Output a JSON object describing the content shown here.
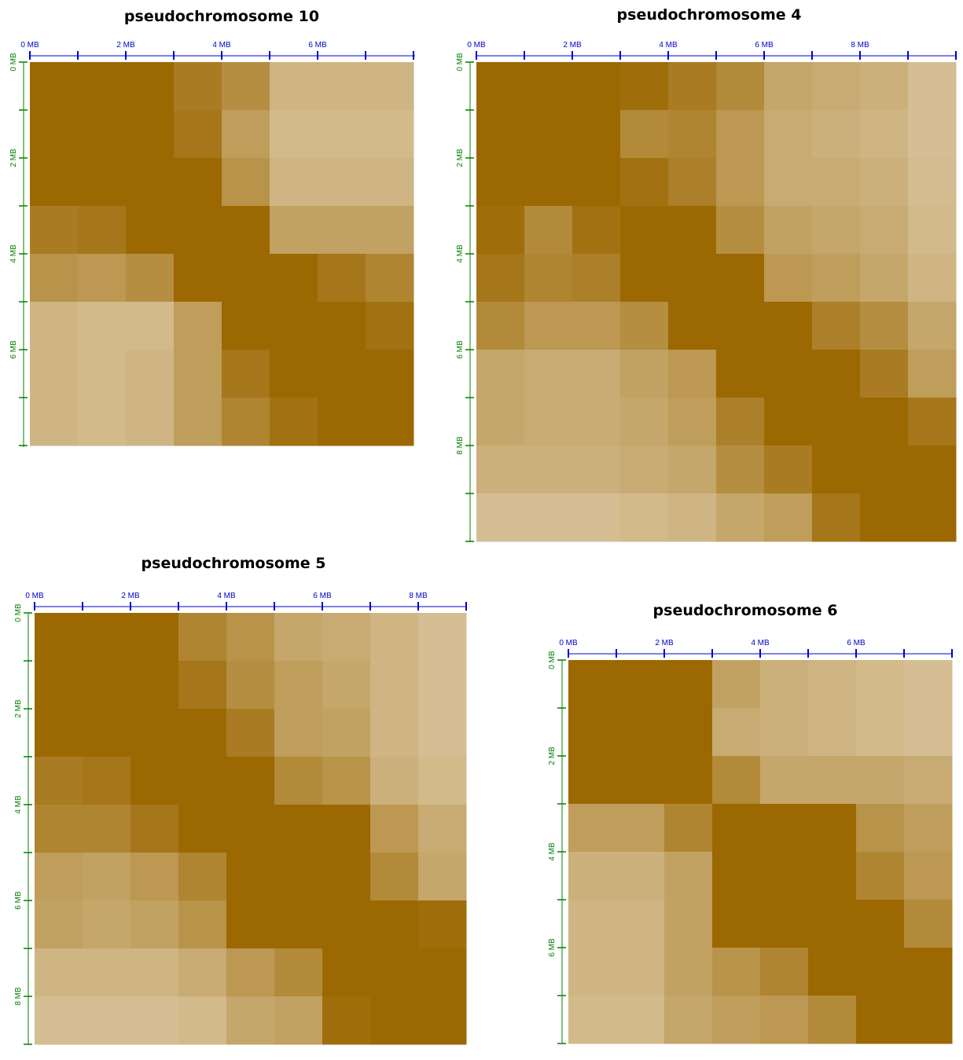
{
  "colors": {
    "strong": "#9C6802",
    "weak": "#DBC8A3",
    "x_axis": "#0000CC",
    "y_axis": "#008000"
  },
  "chart_data": [
    {
      "type": "heatmap",
      "title": "pseudochromosome 10",
      "bin_size_mb": 1,
      "x_tick_labels": [
        "0 MB",
        "2 MB",
        "4 MB",
        "6 MB"
      ],
      "y_tick_labels": [
        "0 MB",
        "2 MB",
        "4 MB",
        "6 MB"
      ],
      "value_range": [
        0,
        1
      ],
      "matrix": [
        [
          1,
          1,
          1,
          0.8,
          0.6,
          0.2,
          0.2,
          0.2
        ],
        [
          1,
          1,
          1,
          0.85,
          0.45,
          0.15,
          0.15,
          0.15
        ],
        [
          1,
          1,
          1,
          1,
          0.55,
          0.2,
          0.2,
          0.2
        ],
        [
          0.8,
          0.85,
          1,
          1,
          1,
          0.4,
          0.4,
          0.4
        ],
        [
          0.55,
          0.5,
          0.6,
          1,
          1,
          1,
          0.85,
          0.7
        ],
        [
          0.2,
          0.15,
          0.15,
          0.45,
          1,
          1,
          1,
          0.9
        ],
        [
          0.2,
          0.15,
          0.2,
          0.45,
          0.85,
          1,
          1,
          1
        ],
        [
          0.2,
          0.15,
          0.2,
          0.45,
          0.7,
          0.9,
          1,
          1
        ]
      ]
    },
    {
      "type": "heatmap",
      "title": "pseudochromosome 4",
      "bin_size_mb": 1,
      "x_tick_labels": [
        "0 MB",
        "2 MB",
        "4 MB",
        "6 MB",
        "8 MB"
      ],
      "y_tick_labels": [
        "0 MB",
        "2 MB",
        "4 MB",
        "6 MB",
        "8 MB"
      ],
      "value_range": [
        0,
        1
      ],
      "matrix": [
        [
          1,
          1,
          1,
          0.95,
          0.8,
          0.65,
          0.35,
          0.3,
          0.25,
          0.1
        ],
        [
          1,
          1,
          1,
          0.65,
          0.7,
          0.5,
          0.3,
          0.25,
          0.2,
          0.1
        ],
        [
          1,
          1,
          1,
          0.9,
          0.75,
          0.5,
          0.3,
          0.3,
          0.25,
          0.12
        ],
        [
          0.95,
          0.65,
          0.9,
          1,
          1,
          0.6,
          0.4,
          0.35,
          0.3,
          0.15
        ],
        [
          0.85,
          0.7,
          0.75,
          1,
          1,
          1,
          0.5,
          0.45,
          0.35,
          0.2
        ],
        [
          0.65,
          0.5,
          0.5,
          0.6,
          1,
          1,
          1,
          0.75,
          0.6,
          0.35
        ],
        [
          0.35,
          0.3,
          0.3,
          0.4,
          0.5,
          1,
          1,
          1,
          0.8,
          0.45
        ],
        [
          0.35,
          0.3,
          0.3,
          0.35,
          0.45,
          0.75,
          1,
          1,
          1,
          0.85
        ],
        [
          0.25,
          0.25,
          0.25,
          0.3,
          0.35,
          0.6,
          0.8,
          1,
          1,
          1
        ],
        [
          0.1,
          0.1,
          0.1,
          0.15,
          0.2,
          0.35,
          0.45,
          0.85,
          1,
          1
        ]
      ]
    },
    {
      "type": "heatmap",
      "title": "pseudochromosome 5",
      "bin_size_mb": 1,
      "x_tick_labels": [
        "0 MB",
        "2 MB",
        "4 MB",
        "6 MB",
        "8 MB"
      ],
      "y_tick_labels": [
        "0 MB",
        "2 MB",
        "4 MB",
        "6 MB",
        "8 MB"
      ],
      "value_range": [
        0,
        1
      ],
      "matrix": [
        [
          1,
          1,
          1,
          0.7,
          0.55,
          0.35,
          0.3,
          0.2,
          0.1
        ],
        [
          1,
          1,
          1,
          0.85,
          0.6,
          0.45,
          0.35,
          0.2,
          0.1
        ],
        [
          1,
          1,
          1,
          1,
          0.8,
          0.45,
          0.4,
          0.2,
          0.1
        ],
        [
          0.8,
          0.85,
          1,
          1,
          1,
          0.65,
          0.55,
          0.25,
          0.15
        ],
        [
          0.7,
          0.7,
          0.85,
          1,
          1,
          1,
          1,
          0.5,
          0.3
        ],
        [
          0.45,
          0.4,
          0.5,
          0.7,
          1,
          1,
          1,
          0.65,
          0.35
        ],
        [
          0.4,
          0.35,
          0.4,
          0.55,
          1,
          1,
          1,
          1,
          0.95
        ],
        [
          0.2,
          0.2,
          0.2,
          0.3,
          0.5,
          0.65,
          1,
          1,
          1
        ],
        [
          0.1,
          0.1,
          0.1,
          0.15,
          0.35,
          0.4,
          0.95,
          1,
          1
        ]
      ]
    },
    {
      "type": "heatmap",
      "title": "pseudochromosome 6",
      "bin_size_mb": 1,
      "x_tick_labels": [
        "0 MB",
        "2 MB",
        "4 MB",
        "6 MB"
      ],
      "y_tick_labels": [
        "0 MB",
        "2 MB",
        "4 MB",
        "6 MB"
      ],
      "value_range": [
        0,
        1
      ],
      "matrix": [
        [
          1,
          1,
          1,
          0.4,
          0.25,
          0.2,
          0.15,
          0.1
        ],
        [
          1,
          1,
          1,
          0.3,
          0.25,
          0.2,
          0.15,
          0.1
        ],
        [
          1,
          1,
          1,
          0.65,
          0.35,
          0.35,
          0.35,
          0.3
        ],
        [
          0.45,
          0.45,
          0.7,
          1,
          1,
          1,
          0.55,
          0.45
        ],
        [
          0.25,
          0.25,
          0.4,
          1,
          1,
          1,
          0.7,
          0.5
        ],
        [
          0.2,
          0.2,
          0.4,
          1,
          1,
          1,
          1,
          0.65
        ],
        [
          0.2,
          0.2,
          0.4,
          0.55,
          0.7,
          1,
          1,
          1
        ],
        [
          0.15,
          0.15,
          0.35,
          0.45,
          0.5,
          0.65,
          1,
          1
        ]
      ]
    }
  ]
}
